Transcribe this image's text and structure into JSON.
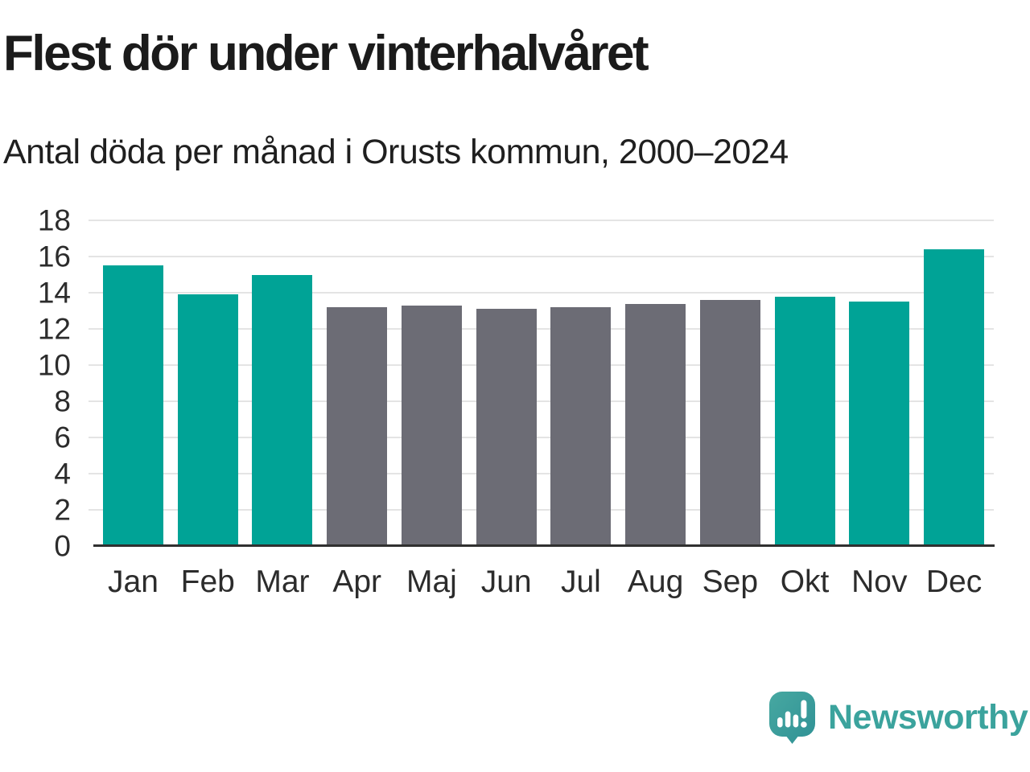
{
  "header": {
    "title": "Flest dör under vinterhalvåret",
    "subtitle": "Antal döda per månad i Orusts kommun, 2000–2024"
  },
  "chart_data": {
    "type": "bar",
    "title": "Flest dör under vinterhalvåret",
    "subtitle": "Antal döda per månad i Orusts kommun, 2000–2024",
    "categories": [
      "Jan",
      "Feb",
      "Mar",
      "Apr",
      "Maj",
      "Jun",
      "Jul",
      "Aug",
      "Sep",
      "Okt",
      "Nov",
      "Dec"
    ],
    "values": [
      15.5,
      13.9,
      15.0,
      13.2,
      13.3,
      13.1,
      13.2,
      13.4,
      13.6,
      13.8,
      13.5,
      16.4
    ],
    "bar_colors": [
      "winter",
      "winter",
      "winter",
      "summer",
      "summer",
      "summer",
      "summer",
      "summer",
      "summer",
      "winter",
      "winter",
      "winter"
    ],
    "colors": {
      "winter": "#00a396",
      "summer": "#6c6c75"
    },
    "xlabel": "",
    "ylabel": "",
    "ylim": [
      0,
      18
    ],
    "yticks": [
      0,
      2,
      4,
      6,
      8,
      10,
      12,
      14,
      16,
      18
    ],
    "grid": true,
    "legend": false
  },
  "footer": {
    "brand": "Newsworthy",
    "logo_icon": "newsworthy-speech-bubble-barchart-icon"
  },
  "colors": {
    "teal": "#00a396",
    "gray": "#6c6c75",
    "gridline": "#e4e4e4",
    "axis_line": "#303030",
    "text_dark": "#1b1b1b",
    "axis_text": "#2c2c2c",
    "logo_teal": "#3ba39d"
  }
}
